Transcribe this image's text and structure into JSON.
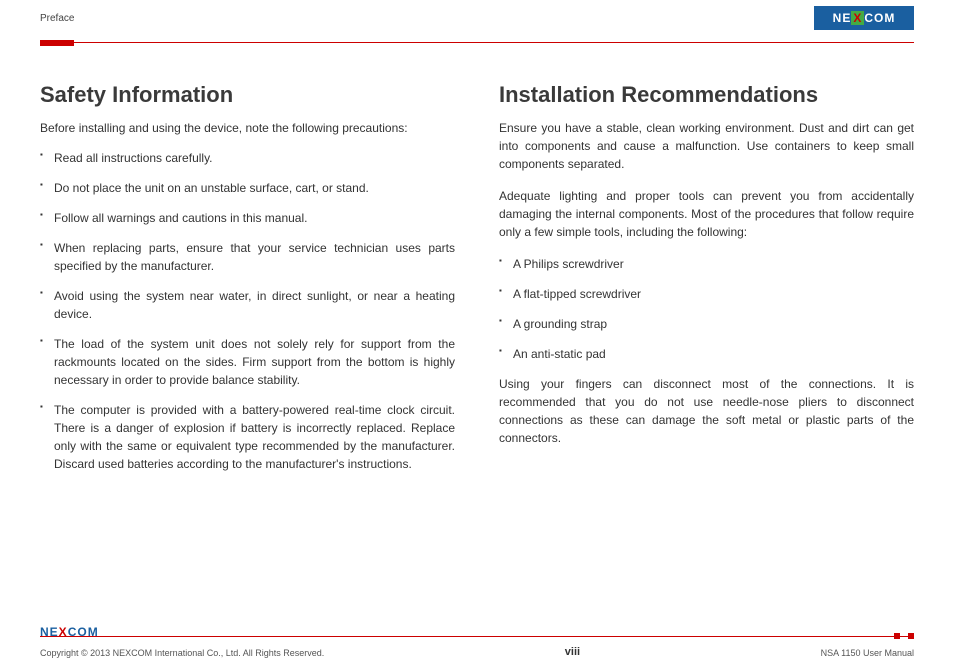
{
  "header": {
    "section_label": "Preface",
    "logo_text_left": "NE",
    "logo_text_x": "X",
    "logo_text_right": "COM"
  },
  "left": {
    "heading": "Safety Information",
    "intro": "Before installing and using the device, note the following precautions:",
    "bullets": [
      "Read all instructions carefully.",
      "Do not place the unit on an unstable surface, cart, or stand.",
      "Follow all warnings and cautions in this manual.",
      "When replacing parts, ensure that your service technician uses parts specified by the manufacturer.",
      "Avoid using the system near water, in direct sunlight, or near a heating device.",
      "The load of the system unit does not solely rely for support from the rackmounts located on the sides. Firm support from the bottom is highly necessary in order to provide balance stability.",
      "The computer is provided with a battery-powered real-time clock circuit. There is a danger of explosion if battery is incorrectly replaced. Replace only with the same or equivalent type recommended by the manufacturer. Discard used batteries according to the manufacturer's instructions."
    ]
  },
  "right": {
    "heading": "Installation Recommendations",
    "para1": "Ensure you have a stable, clean working environment. Dust and dirt can get into components and cause a malfunction. Use containers to keep small components separated.",
    "para2": "Adequate lighting and proper tools can prevent you from accidentally damaging the internal components. Most of the procedures that follow require only a few simple tools, including the following:",
    "bullets": [
      "A Philips screwdriver",
      "A flat-tipped screwdriver",
      "A grounding strap",
      "An anti-static pad"
    ],
    "para3": "Using your fingers can disconnect most of the connections. It is recommended that you do not use needle-nose pliers to disconnect connections as these can damage the soft metal or plastic parts of the connectors."
  },
  "footer": {
    "logo_text_left": "NE",
    "logo_text_x": "X",
    "logo_text_right": "COM",
    "copyright": "Copyright © 2013 NEXCOM International Co., Ltd. All Rights Reserved.",
    "page_number": "viii",
    "doc_title": "NSA 1150 User Manual"
  },
  "colors": {
    "accent_red": "#c00000",
    "brand_blue": "#1a5fa0",
    "brand_green": "#44aa44",
    "text": "#333333"
  }
}
